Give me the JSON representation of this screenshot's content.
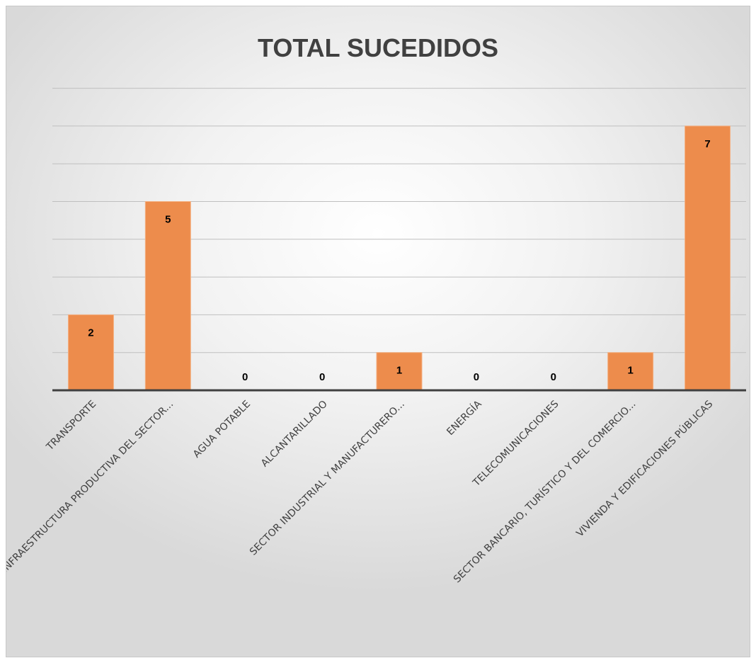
{
  "chart_data": {
    "type": "bar",
    "title": "TOTAL SUCEDIDOS",
    "xlabel": "",
    "ylabel": "",
    "categories": [
      "TRANSPORTE",
      "INFRAESTRUCTURA PRODUCTIVA DEL SECTOR...",
      "AGUA POTABLE",
      "ALCANTARILLADO",
      "SECTOR INDUSTRIAL Y MANUFACTURERO...",
      "ENERGÍA",
      "TELECOMUNICACIONES",
      "SECTOR BANCARIO, TURÍSTICO Y DEL COMERCIO...",
      "VIVIENDA Y EDIFICACIONES PÚBLICAS"
    ],
    "values": [
      2,
      5,
      0,
      0,
      1,
      0,
      0,
      1,
      7
    ],
    "ylim": [
      0,
      8
    ],
    "grid": true,
    "legend": "none",
    "bar_color": "#ED8C4C",
    "bar_edge_color": "#F4B183",
    "gridline_color": "#BFBFBF",
    "axis_color": "#404040"
  }
}
